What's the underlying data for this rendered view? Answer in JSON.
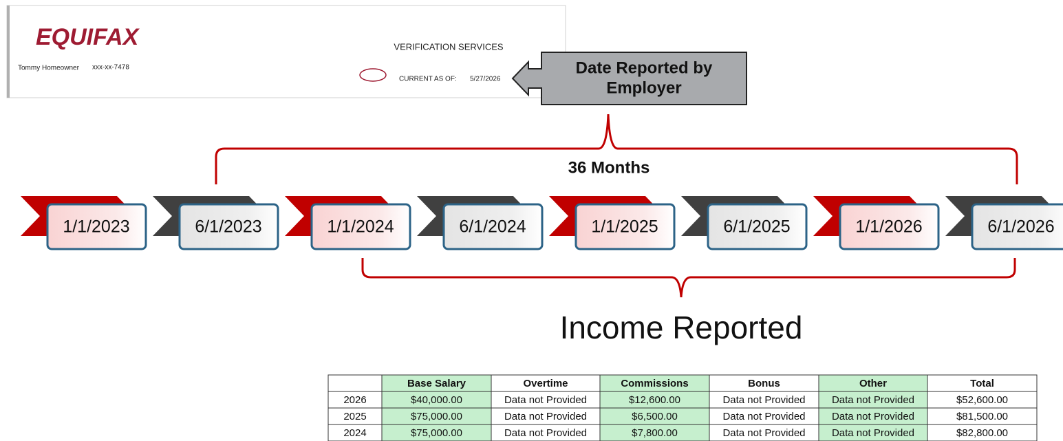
{
  "header": {
    "logo": "EQUIFAX",
    "name": "Tommy Homeowner",
    "ssn": "xxx-xx-7478",
    "service": "VERIFICATION SERVICES",
    "current_label": "CURRENT AS OF:",
    "current_date": "5/27/2026"
  },
  "callout": {
    "line1": "Date Reported by",
    "line2": "Employer"
  },
  "span_label": "36 Months",
  "timeline": [
    "1/1/2023",
    "6/1/2023",
    "1/1/2024",
    "6/1/2024",
    "1/1/2025",
    "6/1/2025",
    "1/1/2026",
    "6/1/2026"
  ],
  "income_title": "Income Reported",
  "table": {
    "columns": [
      "",
      "Base Salary",
      "Overtime",
      "Commissions",
      "Bonus",
      "Other",
      "Total"
    ],
    "rows": [
      [
        "2026",
        "$40,000.00",
        "Data not Provided",
        "$12,600.00",
        "Data not Provided",
        "Data not Provided",
        "$52,600.00"
      ],
      [
        "2025",
        "$75,000.00",
        "Data not Provided",
        "$6,500.00",
        "Data not Provided",
        "Data not Provided",
        "$81,500.00"
      ],
      [
        "2024",
        "$75,000.00",
        "Data not Provided",
        "$7,800.00",
        "Data not Provided",
        "Data not Provided",
        "$82,800.00"
      ]
    ]
  }
}
